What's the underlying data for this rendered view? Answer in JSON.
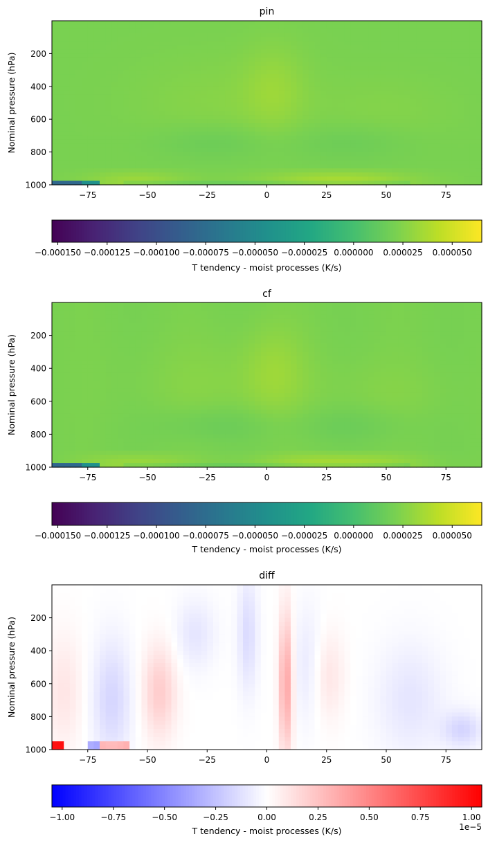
{
  "chart_data": [
    {
      "type": "heatmap",
      "title": "pin",
      "xlabel": "",
      "ylabel": "Nominal pressure (hPa)",
      "xlim": [
        -90,
        90
      ],
      "ylim": [
        1000,
        0
      ],
      "x_ticks": [
        "-75",
        "-50",
        "-25",
        "0",
        "25",
        "50",
        "75"
      ],
      "x_tick_values": [
        -75,
        -50,
        -25,
        0,
        25,
        50,
        75
      ],
      "y_ticks": [
        "200",
        "400",
        "600",
        "800",
        "1000"
      ],
      "y_tick_values": [
        200,
        400,
        600,
        800,
        1000
      ],
      "colormap": "viridis",
      "colorbar": {
        "label": "T tendency - moist processes (K/s)",
        "range": [
          -0.000153,
          6.5e-05
        ],
        "ticks": [
          "−0.000150",
          "−0.000125",
          "−0.000100",
          "−0.000075",
          "−0.000050",
          "−0.000025",
          "0.000000",
          "0.000025",
          "0.000050"
        ],
        "tick_values": [
          -0.00015,
          -0.000125,
          -0.0001,
          -7.5e-05,
          -5e-05,
          -2.5e-05,
          0,
          2.5e-05,
          5e-05
        ]
      }
    },
    {
      "type": "heatmap",
      "title": "cf",
      "xlabel": "",
      "ylabel": "Nominal pressure (hPa)",
      "xlim": [
        -90,
        90
      ],
      "ylim": [
        1000,
        0
      ],
      "x_ticks": [
        "-75",
        "-50",
        "-25",
        "0",
        "25",
        "50",
        "75"
      ],
      "x_tick_values": [
        -75,
        -50,
        -25,
        0,
        25,
        50,
        75
      ],
      "y_ticks": [
        "200",
        "400",
        "600",
        "800",
        "1000"
      ],
      "y_tick_values": [
        200,
        400,
        600,
        800,
        1000
      ],
      "colormap": "viridis",
      "colorbar": {
        "label": "T tendency - moist processes (K/s)",
        "range": [
          -0.000153,
          6.5e-05
        ],
        "ticks": [
          "−0.000150",
          "−0.000125",
          "−0.000100",
          "−0.000075",
          "−0.000050",
          "−0.000025",
          "0.000000",
          "0.000025",
          "0.000050"
        ],
        "tick_values": [
          -0.00015,
          -0.000125,
          -0.0001,
          -7.5e-05,
          -5e-05,
          -2.5e-05,
          0,
          2.5e-05,
          5e-05
        ]
      }
    },
    {
      "type": "heatmap",
      "title": "diff",
      "xlabel": "",
      "ylabel": "Nominal pressure (hPa)",
      "xlim": [
        -90,
        90
      ],
      "ylim": [
        1000,
        0
      ],
      "x_ticks": [
        "-75",
        "-50",
        "-25",
        "0",
        "25",
        "50",
        "75"
      ],
      "x_tick_values": [
        -75,
        -50,
        -25,
        0,
        25,
        50,
        75
      ],
      "y_ticks": [
        "200",
        "400",
        "600",
        "800",
        "1000"
      ],
      "y_tick_values": [
        200,
        400,
        600,
        800,
        1000
      ],
      "colormap": "bwr",
      "colorbar": {
        "label": "T tendency - moist processes (K/s)",
        "range": [
          -1.05,
          1.05
        ],
        "ticks": [
          "−1.00",
          "−0.75",
          "−0.50",
          "−0.25",
          "0.00",
          "0.25",
          "0.50",
          "0.75",
          "1.00"
        ],
        "tick_values": [
          -1.0,
          -0.75,
          -0.5,
          -0.25,
          0,
          0.25,
          0.5,
          0.75,
          1.0
        ],
        "offset_text": "1e−5"
      }
    }
  ]
}
